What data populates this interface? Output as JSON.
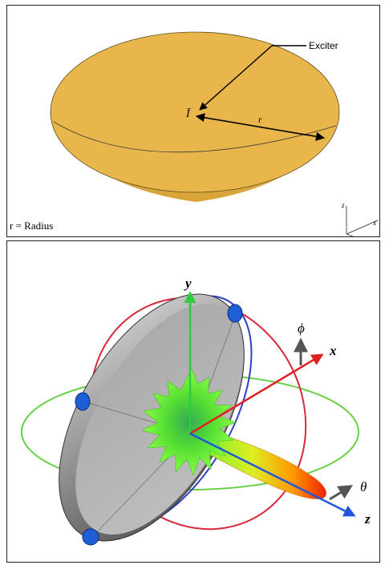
{
  "top_panel": {
    "exciter_label": "Exciter",
    "feed_symbol": "Ī",
    "radius_symbol": "r",
    "legend_text": "r = Radius",
    "axes": {
      "z": "z",
      "x": "x",
      "y": "y"
    },
    "colors": {
      "dish_fill": "#E8B64A",
      "dish_rim": "#EBC25A",
      "dish_side": "#D9A53A"
    }
  },
  "bottom_panel": {
    "axes": {
      "y": "y",
      "x": "x",
      "z": "z",
      "phi": "ϕ",
      "theta": "θ"
    },
    "colors": {
      "y_axis": "#2ecc40",
      "x_axis": "#e02020",
      "z_axis": "#2255dd",
      "ring_red": "#d8283c",
      "ring_blue": "#3040c8",
      "ring_green": "#66d044",
      "dish": "#8c8c8c",
      "pattern": "#66ee33"
    }
  }
}
